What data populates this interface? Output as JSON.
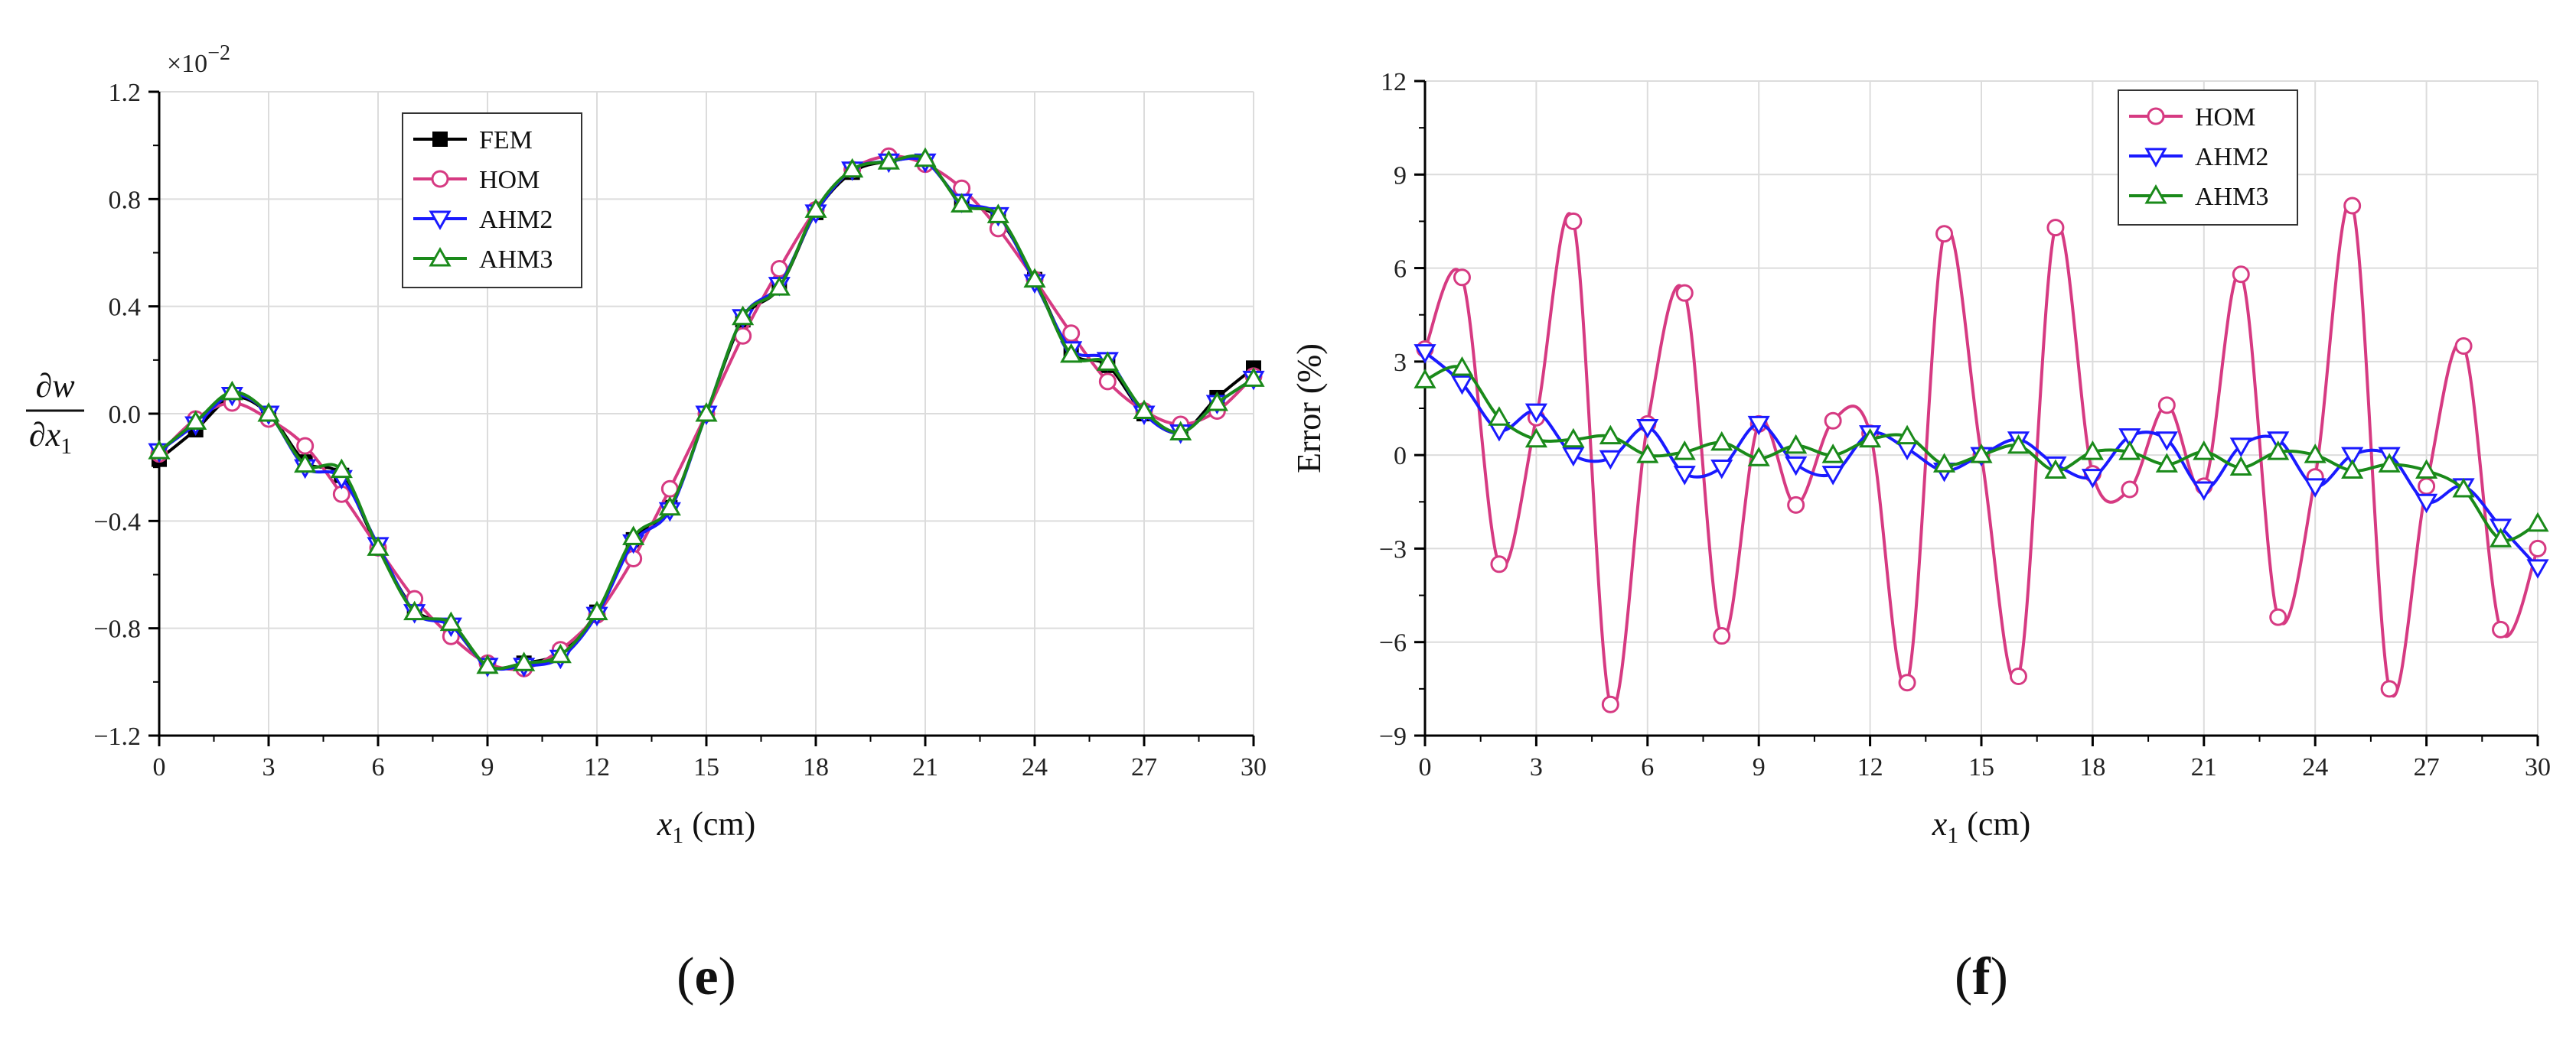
{
  "chart_data": [
    {
      "type": "line",
      "panel_label": "(e)",
      "xlabel": {
        "var": "x",
        "sub": "1",
        "unit": " (cm)"
      },
      "ylabel": {
        "num": "∂w",
        "den": "∂x",
        "den_sub": "1"
      },
      "exponent": {
        "base": "×10",
        "power": "−2"
      },
      "xlim": [
        0,
        30
      ],
      "ylim": [
        -1.2,
        1.2
      ],
      "xticks": [
        "0",
        "3",
        "6",
        "9",
        "12",
        "15",
        "18",
        "21",
        "24",
        "27",
        "30"
      ],
      "yticks": [
        "−1.2",
        "−0.8",
        "−0.4",
        "0.0",
        "0.4",
        "0.8",
        "1.2"
      ],
      "grid": true,
      "legend": "top-left",
      "series": [
        {
          "name": "FEM",
          "color": "#000000",
          "marker": "square",
          "x": [
            0,
            1,
            2,
            3,
            4,
            5,
            6,
            7,
            8,
            9,
            10,
            11,
            12,
            13,
            14,
            15,
            16,
            17,
            18,
            19,
            20,
            21,
            22,
            23,
            24,
            25,
            26,
            27,
            28,
            29,
            30
          ],
          "y": [
            -0.17,
            -0.06,
            0.06,
            0.0,
            -0.18,
            -0.23,
            -0.5,
            -0.73,
            -0.79,
            -0.94,
            -0.93,
            -0.89,
            -0.74,
            -0.47,
            -0.35,
            0.0,
            0.35,
            0.47,
            0.75,
            0.9,
            0.94,
            0.94,
            0.79,
            0.73,
            0.5,
            0.23,
            0.18,
            0.0,
            -0.07,
            0.06,
            0.17
          ]
        },
        {
          "name": "HOM",
          "color": "#d63a82",
          "marker": "circle",
          "x": [
            0,
            1,
            2,
            3,
            4,
            5,
            6,
            7,
            8,
            9,
            10,
            11,
            12,
            13,
            14,
            15,
            16,
            17,
            18,
            19,
            20,
            21,
            22,
            23,
            24,
            25,
            26,
            27,
            28,
            29,
            30
          ],
          "y": [
            -0.15,
            -0.02,
            0.04,
            -0.02,
            -0.12,
            -0.3,
            -0.5,
            -0.69,
            -0.83,
            -0.93,
            -0.95,
            -0.88,
            -0.75,
            -0.54,
            -0.28,
            0.0,
            0.29,
            0.54,
            0.76,
            0.91,
            0.96,
            0.93,
            0.84,
            0.69,
            0.5,
            0.3,
            0.12,
            0.01,
            -0.04,
            0.01,
            0.14
          ]
        },
        {
          "name": "AHM2",
          "color": "#1a1aff",
          "marker": "triangle-down",
          "x": [
            0,
            1,
            2,
            3,
            4,
            5,
            6,
            7,
            8,
            9,
            10,
            11,
            12,
            13,
            14,
            15,
            16,
            17,
            18,
            19,
            20,
            21,
            22,
            23,
            24,
            25,
            26,
            27,
            28,
            29,
            30
          ],
          "y": [
            -0.14,
            -0.04,
            0.07,
            0.0,
            -0.2,
            -0.24,
            -0.49,
            -0.74,
            -0.79,
            -0.94,
            -0.94,
            -0.91,
            -0.75,
            -0.48,
            -0.36,
            0.0,
            0.36,
            0.48,
            0.75,
            0.91,
            0.94,
            0.94,
            0.79,
            0.74,
            0.49,
            0.24,
            0.2,
            0.0,
            -0.07,
            0.04,
            0.13
          ]
        },
        {
          "name": "AHM3",
          "color": "#1a8a1a",
          "marker": "triangle-up",
          "x": [
            0,
            1,
            2,
            3,
            4,
            5,
            6,
            7,
            8,
            9,
            10,
            11,
            12,
            13,
            14,
            15,
            16,
            17,
            18,
            19,
            20,
            21,
            22,
            23,
            24,
            25,
            26,
            27,
            28,
            29,
            30
          ],
          "y": [
            -0.14,
            -0.03,
            0.08,
            0.0,
            -0.19,
            -0.21,
            -0.5,
            -0.74,
            -0.78,
            -0.94,
            -0.93,
            -0.9,
            -0.74,
            -0.46,
            -0.35,
            0.0,
            0.36,
            0.47,
            0.76,
            0.91,
            0.94,
            0.95,
            0.78,
            0.74,
            0.5,
            0.22,
            0.19,
            0.01,
            -0.07,
            0.04,
            0.13
          ]
        }
      ]
    },
    {
      "type": "line",
      "panel_label": "(f)",
      "xlabel": {
        "var": "x",
        "sub": "1",
        "unit": " (cm)"
      },
      "ylabel": {
        "text": "Error (%)"
      },
      "xlim": [
        0,
        30
      ],
      "ylim": [
        -9,
        12
      ],
      "xticks": [
        "0",
        "3",
        "6",
        "9",
        "12",
        "15",
        "18",
        "21",
        "24",
        "27",
        "30"
      ],
      "yticks": [
        "−9",
        "−6",
        "−3",
        "0",
        "3",
        "6",
        "9",
        "12"
      ],
      "grid": true,
      "legend": "top-left",
      "series": [
        {
          "name": "HOM",
          "color": "#d63a82",
          "marker": "circle",
          "x": [
            0,
            1,
            2,
            3,
            4,
            5,
            6,
            7,
            8,
            9,
            10,
            11,
            12,
            13,
            14,
            15,
            16,
            17,
            18,
            19,
            20,
            21,
            22,
            23,
            24,
            25,
            26,
            27,
            28,
            29,
            30
          ],
          "y": [
            3.4,
            5.7,
            -3.5,
            1.2,
            7.5,
            -8.0,
            1.0,
            5.2,
            -5.8,
            1.0,
            -1.6,
            1.1,
            0.7,
            -7.3,
            7.1,
            0.0,
            -7.1,
            7.3,
            -0.6,
            -1.1,
            1.6,
            -1.0,
            5.8,
            -5.2,
            -0.7,
            8.0,
            -7.5,
            -1.0,
            3.5,
            -5.6,
            -3.0
          ]
        },
        {
          "name": "AHM2",
          "color": "#1a1aff",
          "marker": "triangle-down",
          "x": [
            0,
            1,
            2,
            3,
            4,
            5,
            6,
            7,
            8,
            9,
            10,
            11,
            12,
            13,
            14,
            15,
            16,
            17,
            18,
            19,
            20,
            21,
            22,
            23,
            24,
            25,
            26,
            27,
            28,
            29,
            30
          ],
          "y": [
            3.3,
            2.3,
            0.8,
            1.4,
            0.0,
            -0.1,
            0.9,
            -0.6,
            -0.4,
            1.0,
            -0.3,
            -0.6,
            0.7,
            0.2,
            -0.5,
            0.0,
            0.5,
            -0.3,
            -0.7,
            0.6,
            0.5,
            -1.1,
            0.3,
            0.5,
            -1.0,
            0.0,
            0.0,
            -1.5,
            -1.0,
            -2.3,
            -3.6
          ]
        },
        {
          "name": "AHM3",
          "color": "#1a8a1a",
          "marker": "triangle-up",
          "x": [
            0,
            1,
            2,
            3,
            4,
            5,
            6,
            7,
            8,
            9,
            10,
            11,
            12,
            13,
            14,
            15,
            16,
            17,
            18,
            19,
            20,
            21,
            22,
            23,
            24,
            25,
            26,
            27,
            28,
            29,
            30
          ],
          "y": [
            2.4,
            2.8,
            1.2,
            0.5,
            0.5,
            0.6,
            0.0,
            0.1,
            0.4,
            -0.1,
            0.3,
            0.0,
            0.5,
            0.6,
            -0.3,
            0.0,
            0.3,
            -0.5,
            0.1,
            0.1,
            -0.3,
            0.1,
            -0.4,
            0.1,
            0.0,
            -0.5,
            -0.3,
            -0.5,
            -1.1,
            -2.7,
            -2.2
          ]
        }
      ]
    }
  ]
}
